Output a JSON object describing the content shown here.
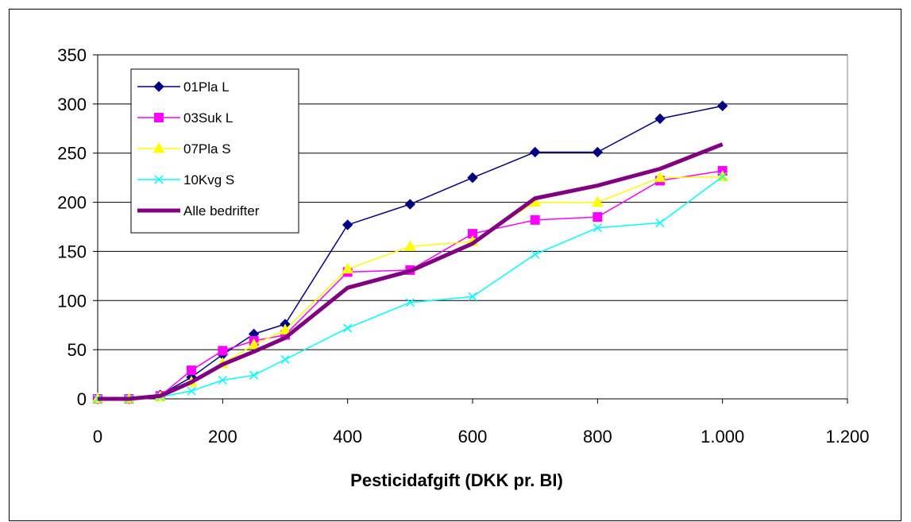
{
  "chart_data": {
    "type": "line",
    "title": "",
    "xlabel": "Pesticidafgift (DKK pr. BI)",
    "ylabel": "",
    "xlim": [
      0,
      1200
    ],
    "ylim": [
      0,
      350
    ],
    "x_ticks": [
      0,
      200,
      400,
      600,
      800,
      1000,
      1200
    ],
    "x_tick_labels": [
      "0",
      "200",
      "400",
      "600",
      "800",
      "1.000",
      "1.200"
    ],
    "y_ticks": [
      0,
      50,
      100,
      150,
      200,
      250,
      300,
      350
    ],
    "y_tick_labels": [
      "0",
      "50",
      "100",
      "150",
      "200",
      "250",
      "300",
      "350"
    ],
    "grid": "horizontal",
    "legend_position": "top-left inside",
    "x": [
      0,
      50,
      100,
      150,
      200,
      250,
      300,
      400,
      500,
      600,
      700,
      800,
      900,
      1000
    ],
    "series": [
      {
        "name": "01Pla L",
        "color": "#000080",
        "marker": "diamond",
        "values": [
          0,
          0,
          4,
          22,
          45,
          66,
          76,
          177,
          198,
          225,
          251,
          251,
          285,
          298
        ]
      },
      {
        "name": "03Suk L",
        "color": "#FF00FF",
        "marker": "square",
        "values": [
          0,
          0,
          3,
          29,
          49,
          59,
          65,
          129,
          131,
          168,
          182,
          185,
          222,
          232
        ]
      },
      {
        "name": "07Pla S",
        "color": "#FFFF00",
        "marker": "triangle",
        "values": [
          0,
          0,
          2,
          17,
          36,
          55,
          70,
          132,
          155,
          160,
          200,
          200,
          225,
          226
        ]
      },
      {
        "name": "10Kvg S",
        "color": "#00FFFF",
        "marker": "x",
        "values": [
          0,
          0,
          2,
          8,
          19,
          24,
          40,
          72,
          98,
          104,
          147,
          174,
          179,
          226
        ]
      },
      {
        "name": "Alle bedrifter",
        "color": "#800080",
        "marker": "none",
        "values": [
          0,
          0,
          3,
          17,
          35,
          48,
          62,
          113,
          130,
          158,
          204,
          217,
          234,
          259
        ]
      }
    ]
  }
}
